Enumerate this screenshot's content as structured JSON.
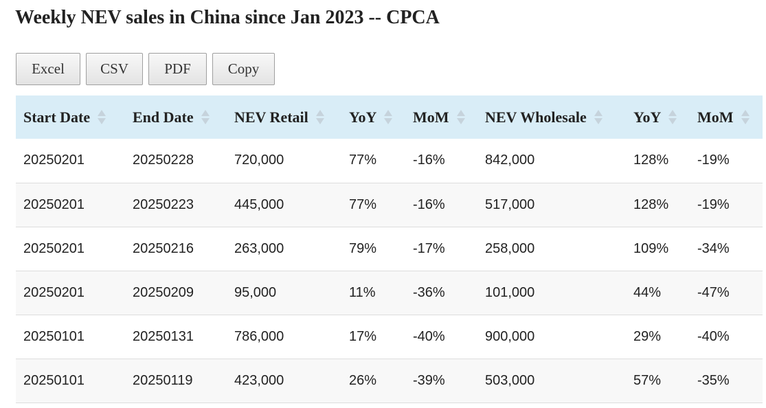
{
  "page": {
    "title": "Weekly NEV sales in China since Jan 2023 -- CPCA"
  },
  "toolbar": {
    "buttons": [
      {
        "label": "Excel"
      },
      {
        "label": "CSV"
      },
      {
        "label": "PDF"
      },
      {
        "label": "Copy"
      }
    ]
  },
  "table": {
    "header_bg": "#d9edf7",
    "columns": [
      {
        "label": "Start Date",
        "icon": "sort-icon"
      },
      {
        "label": "End Date",
        "icon": "sort-icon"
      },
      {
        "label": "NEV Retail",
        "icon": "sort-icon"
      },
      {
        "label": "YoY",
        "icon": "sort-icon"
      },
      {
        "label": "MoM",
        "icon": "sort-icon"
      },
      {
        "label": "NEV Wholesale",
        "icon": "sort-icon"
      },
      {
        "label": "YoY",
        "icon": "sort-icon"
      },
      {
        "label": "MoM",
        "icon": "sort-icon"
      }
    ],
    "rows": [
      [
        "20250201",
        "20250228",
        "720,000",
        "77%",
        "-16%",
        "842,000",
        "128%",
        "-19%"
      ],
      [
        "20250201",
        "20250223",
        "445,000",
        "77%",
        "-16%",
        "517,000",
        "128%",
        "-19%"
      ],
      [
        "20250201",
        "20250216",
        "263,000",
        "79%",
        "-17%",
        "258,000",
        "109%",
        "-34%"
      ],
      [
        "20250201",
        "20250209",
        "95,000",
        "11%",
        "-36%",
        "101,000",
        "44%",
        "-47%"
      ],
      [
        "20250101",
        "20250131",
        "786,000",
        "17%",
        "-40%",
        "900,000",
        "29%",
        "-40%"
      ],
      [
        "20250101",
        "20250119",
        "423,000",
        "26%",
        "-39%",
        "503,000",
        "57%",
        "-35%"
      ]
    ]
  }
}
